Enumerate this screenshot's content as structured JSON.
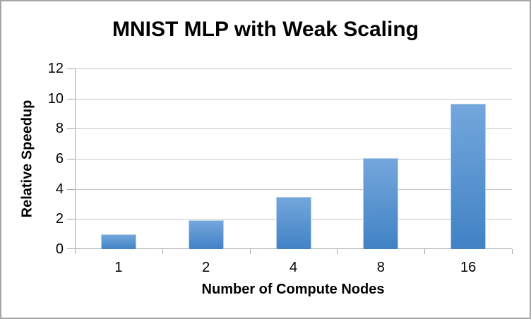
{
  "window": {
    "background": "#ffffff",
    "frame_border_color": "#a6a6a6"
  },
  "chart_data": {
    "type": "bar",
    "title": "MNIST MLP with Weak Scaling",
    "xlabel": "Number of Compute Nodes",
    "ylabel": "Relative Speedup",
    "categories": [
      "1",
      "2",
      "4",
      "8",
      "16"
    ],
    "values": [
      1.0,
      1.9,
      3.45,
      6.05,
      9.65
    ],
    "ylim": [
      0,
      12
    ],
    "yticks": [
      0,
      2,
      4,
      6,
      8,
      10,
      12
    ],
    "grid": true,
    "legend_position": "none",
    "bar_color_top": "#73A7DC",
    "bar_color_bottom": "#4182C5",
    "bar_edge_color": "#b7d0ea",
    "gridline_color": "#c8c8c8",
    "axis_color": "#a6a6a6",
    "text_color": "#000000"
  }
}
